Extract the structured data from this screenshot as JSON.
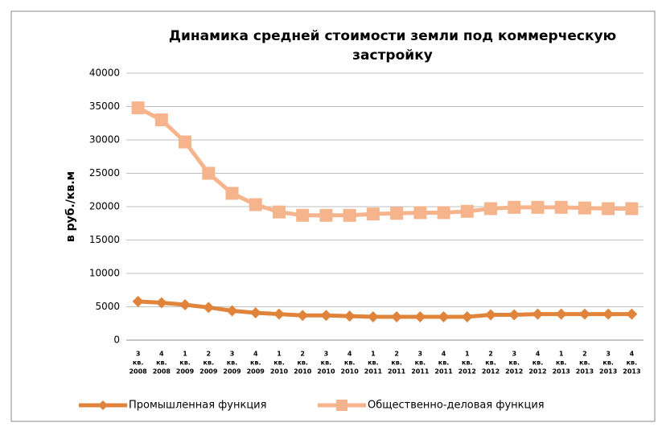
{
  "chart_data": {
    "type": "line",
    "title": [
      "Динамика средней стоимости  земли под коммерческую",
      "застройку"
    ],
    "y_label": "в руб./кв.м",
    "categories": [
      [
        "3",
        "кв.",
        "2008"
      ],
      [
        "4",
        "кв.",
        "2008"
      ],
      [
        "1",
        "кв.",
        "2009"
      ],
      [
        "2",
        "кв.",
        "2009"
      ],
      [
        "3",
        "кв.",
        "2009"
      ],
      [
        "4",
        "кв.",
        "2009"
      ],
      [
        "1",
        "кв.",
        "2010"
      ],
      [
        "2",
        "кв.",
        "2010"
      ],
      [
        "3",
        "кв.",
        "2010"
      ],
      [
        "4",
        "кв.",
        "2010"
      ],
      [
        "1",
        "кв.",
        "2011"
      ],
      [
        "2",
        "кв.",
        "2011"
      ],
      [
        "3",
        "кв.",
        "2011"
      ],
      [
        "4",
        "кв.",
        "2011"
      ],
      [
        "1",
        "кв.",
        "2012"
      ],
      [
        "2",
        "кв.",
        "2012"
      ],
      [
        "3",
        "кв.",
        "2012"
      ],
      [
        "4",
        "кв.",
        "2012"
      ],
      [
        "1",
        "кв.",
        "2013"
      ],
      [
        "2",
        "кв.",
        "2013"
      ],
      [
        "3",
        "кв.",
        "2013"
      ],
      [
        "4",
        "кв.",
        "2013"
      ]
    ],
    "series": [
      {
        "name": "Промышленная функция",
        "color": "#e0843c",
        "marker": "diamond",
        "values": [
          5800,
          5600,
          5300,
          4900,
          4400,
          4100,
          3900,
          3700,
          3700,
          3600,
          3500,
          3500,
          3500,
          3500,
          3500,
          3800,
          3800,
          3900,
          3900,
          3900,
          3900,
          3900
        ]
      },
      {
        "name": "Общественно-деловая функция",
        "color": "#f6b48c",
        "marker": "square",
        "values": [
          34800,
          33000,
          29700,
          25000,
          22000,
          20300,
          19200,
          18700,
          18700,
          18700,
          18900,
          19000,
          19100,
          19100,
          19300,
          19700,
          19900,
          19900,
          19900,
          19800,
          19700,
          19700
        ]
      }
    ],
    "ylim": [
      0,
      40000
    ],
    "yticks": [
      0,
      5000,
      10000,
      15000,
      20000,
      25000,
      30000,
      35000,
      40000
    ],
    "grid": true,
    "legend": "bottom"
  }
}
